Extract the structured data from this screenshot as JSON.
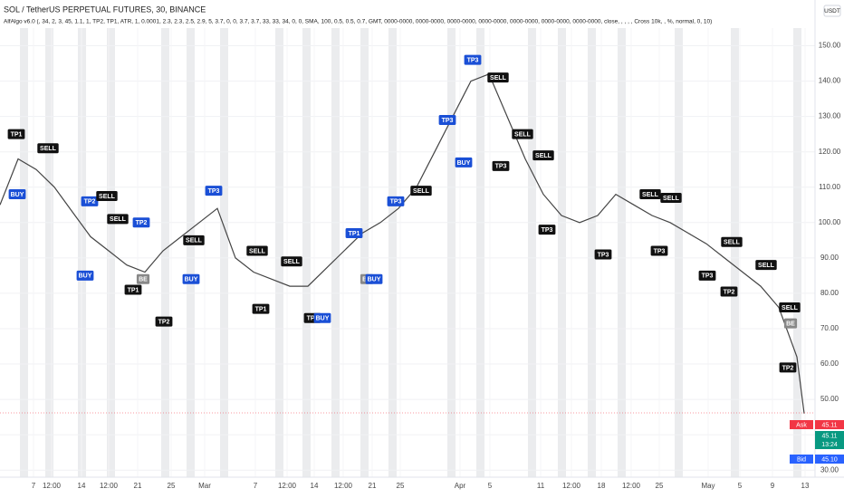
{
  "header": {
    "symbol": "SOL / TetherUS PERPETUAL FUTURES, 30, BINANCE",
    "indicator": "AlfAlgo v6.0 (, 34, 2, 3, 45, 1.1, 1, TP2, TP1, ATR, 1, 0.0001, 2.3, 2.3, 2.5, 2.9, 5, 3.7, 0, 0, 3.7, 3.7, 33, 33, 34, 0, 0, SMA, 100, 0.5, 0.5, 0.7, GMT, 0000-0000, 0000-0000, 0000-0000, 0000-0000, 0000-0000, 0000-0000, 0000-0000, close, , , , , Cross 10k, , %, normal, 0, 10)",
    "currency": "USDT"
  },
  "quotes": {
    "ask_label": "Ask",
    "ask": "45.11",
    "last": "45.11",
    "countdown": "13:24",
    "bid_label": "Bid",
    "bid": "45.10"
  },
  "chart_data": {
    "type": "line",
    "color": "#444444",
    "grid": true,
    "x": [
      0,
      2,
      4,
      6,
      8,
      10,
      12,
      14,
      16,
      18,
      20,
      22,
      24,
      26,
      28,
      30,
      32,
      34,
      36,
      38,
      40,
      42,
      44,
      46,
      48,
      50,
      52,
      54,
      56,
      58,
      60,
      62,
      64,
      66,
      68,
      70,
      72,
      74,
      76,
      78,
      80,
      82,
      84,
      86,
      88,
      88.8
    ],
    "values": [
      105,
      118,
      115,
      110,
      103,
      96,
      92,
      88,
      86,
      92,
      96,
      100,
      104,
      90,
      86,
      84,
      82,
      82,
      87,
      92,
      97,
      100,
      104,
      110,
      120,
      130,
      140,
      142,
      130,
      118,
      108,
      102,
      100,
      102,
      108,
      105,
      102,
      100,
      97,
      94,
      90,
      86,
      82,
      76,
      62,
      46
    ],
    "xlim": [
      0,
      90
    ],
    "xticks": [
      {
        "value": 3.7,
        "label": "7"
      },
      {
        "value": 5.7,
        "label": "12:00"
      },
      {
        "value": 9,
        "label": "14"
      },
      {
        "value": 12,
        "label": "12:00"
      },
      {
        "value": 15.2,
        "label": "21"
      },
      {
        "value": 18.9,
        "label": "25"
      },
      {
        "value": 22.6,
        "label": "Mar"
      },
      {
        "value": 28.2,
        "label": "7"
      },
      {
        "value": 31.7,
        "label": "12:00"
      },
      {
        "value": 34.7,
        "label": "14"
      },
      {
        "value": 37.9,
        "label": "12:00"
      },
      {
        "value": 41.1,
        "label": "21"
      },
      {
        "value": 44.2,
        "label": "25"
      },
      {
        "value": 50.8,
        "label": "Apr"
      },
      {
        "value": 54.1,
        "label": "5"
      },
      {
        "value": 59.7,
        "label": "11"
      },
      {
        "value": 63.1,
        "label": "12:00"
      },
      {
        "value": 66.4,
        "label": "18"
      },
      {
        "value": 69.7,
        "label": "12:00"
      },
      {
        "value": 72.8,
        "label": "25"
      },
      {
        "value": 78.2,
        "label": "May"
      },
      {
        "value": 81.7,
        "label": "5"
      },
      {
        "value": 85.3,
        "label": "9"
      },
      {
        "value": 88.9,
        "label": "13"
      }
    ],
    "ylim": [
      28,
      155
    ],
    "yticks": [
      {
        "value": 30,
        "label": "30.00"
      },
      {
        "value": 40,
        "label": "40.00"
      },
      {
        "value": 50,
        "label": "50.00"
      },
      {
        "value": 60,
        "label": "60.00"
      },
      {
        "value": 70,
        "label": "70.00"
      },
      {
        "value": 80,
        "label": "80.00"
      },
      {
        "value": 90,
        "label": "90.00"
      },
      {
        "value": 100,
        "label": "100.00"
      },
      {
        "value": 110,
        "label": "110.00"
      },
      {
        "value": 120,
        "label": "120.00"
      },
      {
        "value": 130,
        "label": "130.00"
      },
      {
        "value": 140,
        "label": "140.00"
      },
      {
        "value": 150,
        "label": "150.00"
      }
    ],
    "signals": [
      {
        "label": "TP1",
        "x": 1.8,
        "y": 125,
        "color": "#111111"
      },
      {
        "label": "SELL",
        "x": 5.3,
        "y": 121,
        "color": "#111111"
      },
      {
        "label": "BUY",
        "x": 1.9,
        "y": 108,
        "color": "#1a4fd6"
      },
      {
        "label": "TP2",
        "x": 9.9,
        "y": 106,
        "color": "#1a4fd6"
      },
      {
        "label": "SELL",
        "x": 11.8,
        "y": 107.5,
        "color": "#111111"
      },
      {
        "label": "SELL",
        "x": 13,
        "y": 101,
        "color": "#111111"
      },
      {
        "label": "BUY",
        "x": 9.4,
        "y": 85,
        "color": "#1a4fd6"
      },
      {
        "label": "TP1",
        "x": 14.7,
        "y": 81,
        "color": "#111111"
      },
      {
        "label": "TP2",
        "x": 18.1,
        "y": 72,
        "color": "#111111"
      },
      {
        "label": "TP2",
        "x": 15.6,
        "y": 100,
        "color": "#1a4fd6"
      },
      {
        "label": "BE",
        "x": 15.8,
        "y": 84,
        "color": "#888888"
      },
      {
        "label": "TP3",
        "x": 23.6,
        "y": 109,
        "color": "#1a4fd6"
      },
      {
        "label": "SELL",
        "x": 21.4,
        "y": 95,
        "color": "#111111"
      },
      {
        "label": "BUY",
        "x": 21.1,
        "y": 84,
        "color": "#1a4fd6"
      },
      {
        "label": "SELL",
        "x": 28.4,
        "y": 92,
        "color": "#111111"
      },
      {
        "label": "TP1",
        "x": 28.8,
        "y": 75.6,
        "color": "#111111"
      },
      {
        "label": "SELL",
        "x": 32.2,
        "y": 89,
        "color": "#111111"
      },
      {
        "label": "TP2",
        "x": 34.5,
        "y": 73,
        "color": "#111111"
      },
      {
        "label": "BUY",
        "x": 35.6,
        "y": 73,
        "color": "#1a4fd6"
      },
      {
        "label": "BE",
        "x": 40.5,
        "y": 84,
        "color": "#888888"
      },
      {
        "label": "BUY",
        "x": 41.3,
        "y": 84,
        "color": "#1a4fd6"
      },
      {
        "label": "TP1",
        "x": 39.1,
        "y": 97,
        "color": "#1a4fd6"
      },
      {
        "label": "TP3",
        "x": 43.7,
        "y": 106,
        "color": "#1a4fd6"
      },
      {
        "label": "SELL",
        "x": 46.5,
        "y": 109,
        "color": "#111111"
      },
      {
        "label": "BUY",
        "x": 51.2,
        "y": 117,
        "color": "#1a4fd6"
      },
      {
        "label": "TP3",
        "x": 49.4,
        "y": 129,
        "color": "#1a4fd6"
      },
      {
        "label": "TP3",
        "x": 52.2,
        "y": 146,
        "color": "#1a4fd6"
      },
      {
        "label": "SELL",
        "x": 55,
        "y": 141,
        "color": "#111111"
      },
      {
        "label": "TP3",
        "x": 55.3,
        "y": 116,
        "color": "#111111"
      },
      {
        "label": "SELL",
        "x": 57.7,
        "y": 125,
        "color": "#111111"
      },
      {
        "label": "SELL",
        "x": 60,
        "y": 119,
        "color": "#111111"
      },
      {
        "label": "TP3",
        "x": 60.4,
        "y": 98,
        "color": "#111111"
      },
      {
        "label": "TP3",
        "x": 66.6,
        "y": 91,
        "color": "#111111"
      },
      {
        "label": "SELL",
        "x": 71.8,
        "y": 108,
        "color": "#111111"
      },
      {
        "label": "TP3",
        "x": 72.8,
        "y": 92,
        "color": "#111111"
      },
      {
        "label": "SELL",
        "x": 74.1,
        "y": 107,
        "color": "#111111"
      },
      {
        "label": "TP3",
        "x": 78.1,
        "y": 85,
        "color": "#111111"
      },
      {
        "label": "TP2",
        "x": 80.5,
        "y": 80.5,
        "color": "#111111"
      },
      {
        "label": "SELL",
        "x": 80.8,
        "y": 94.5,
        "color": "#111111"
      },
      {
        "label": "SELL",
        "x": 84.6,
        "y": 88,
        "color": "#111111"
      },
      {
        "label": "SELL",
        "x": 87.2,
        "y": 76,
        "color": "#111111"
      },
      {
        "label": "BE",
        "x": 87.3,
        "y": 71.5,
        "color": "#888888"
      },
      {
        "label": "TP2",
        "x": 87,
        "y": 59,
        "color": "#111111"
      }
    ]
  }
}
